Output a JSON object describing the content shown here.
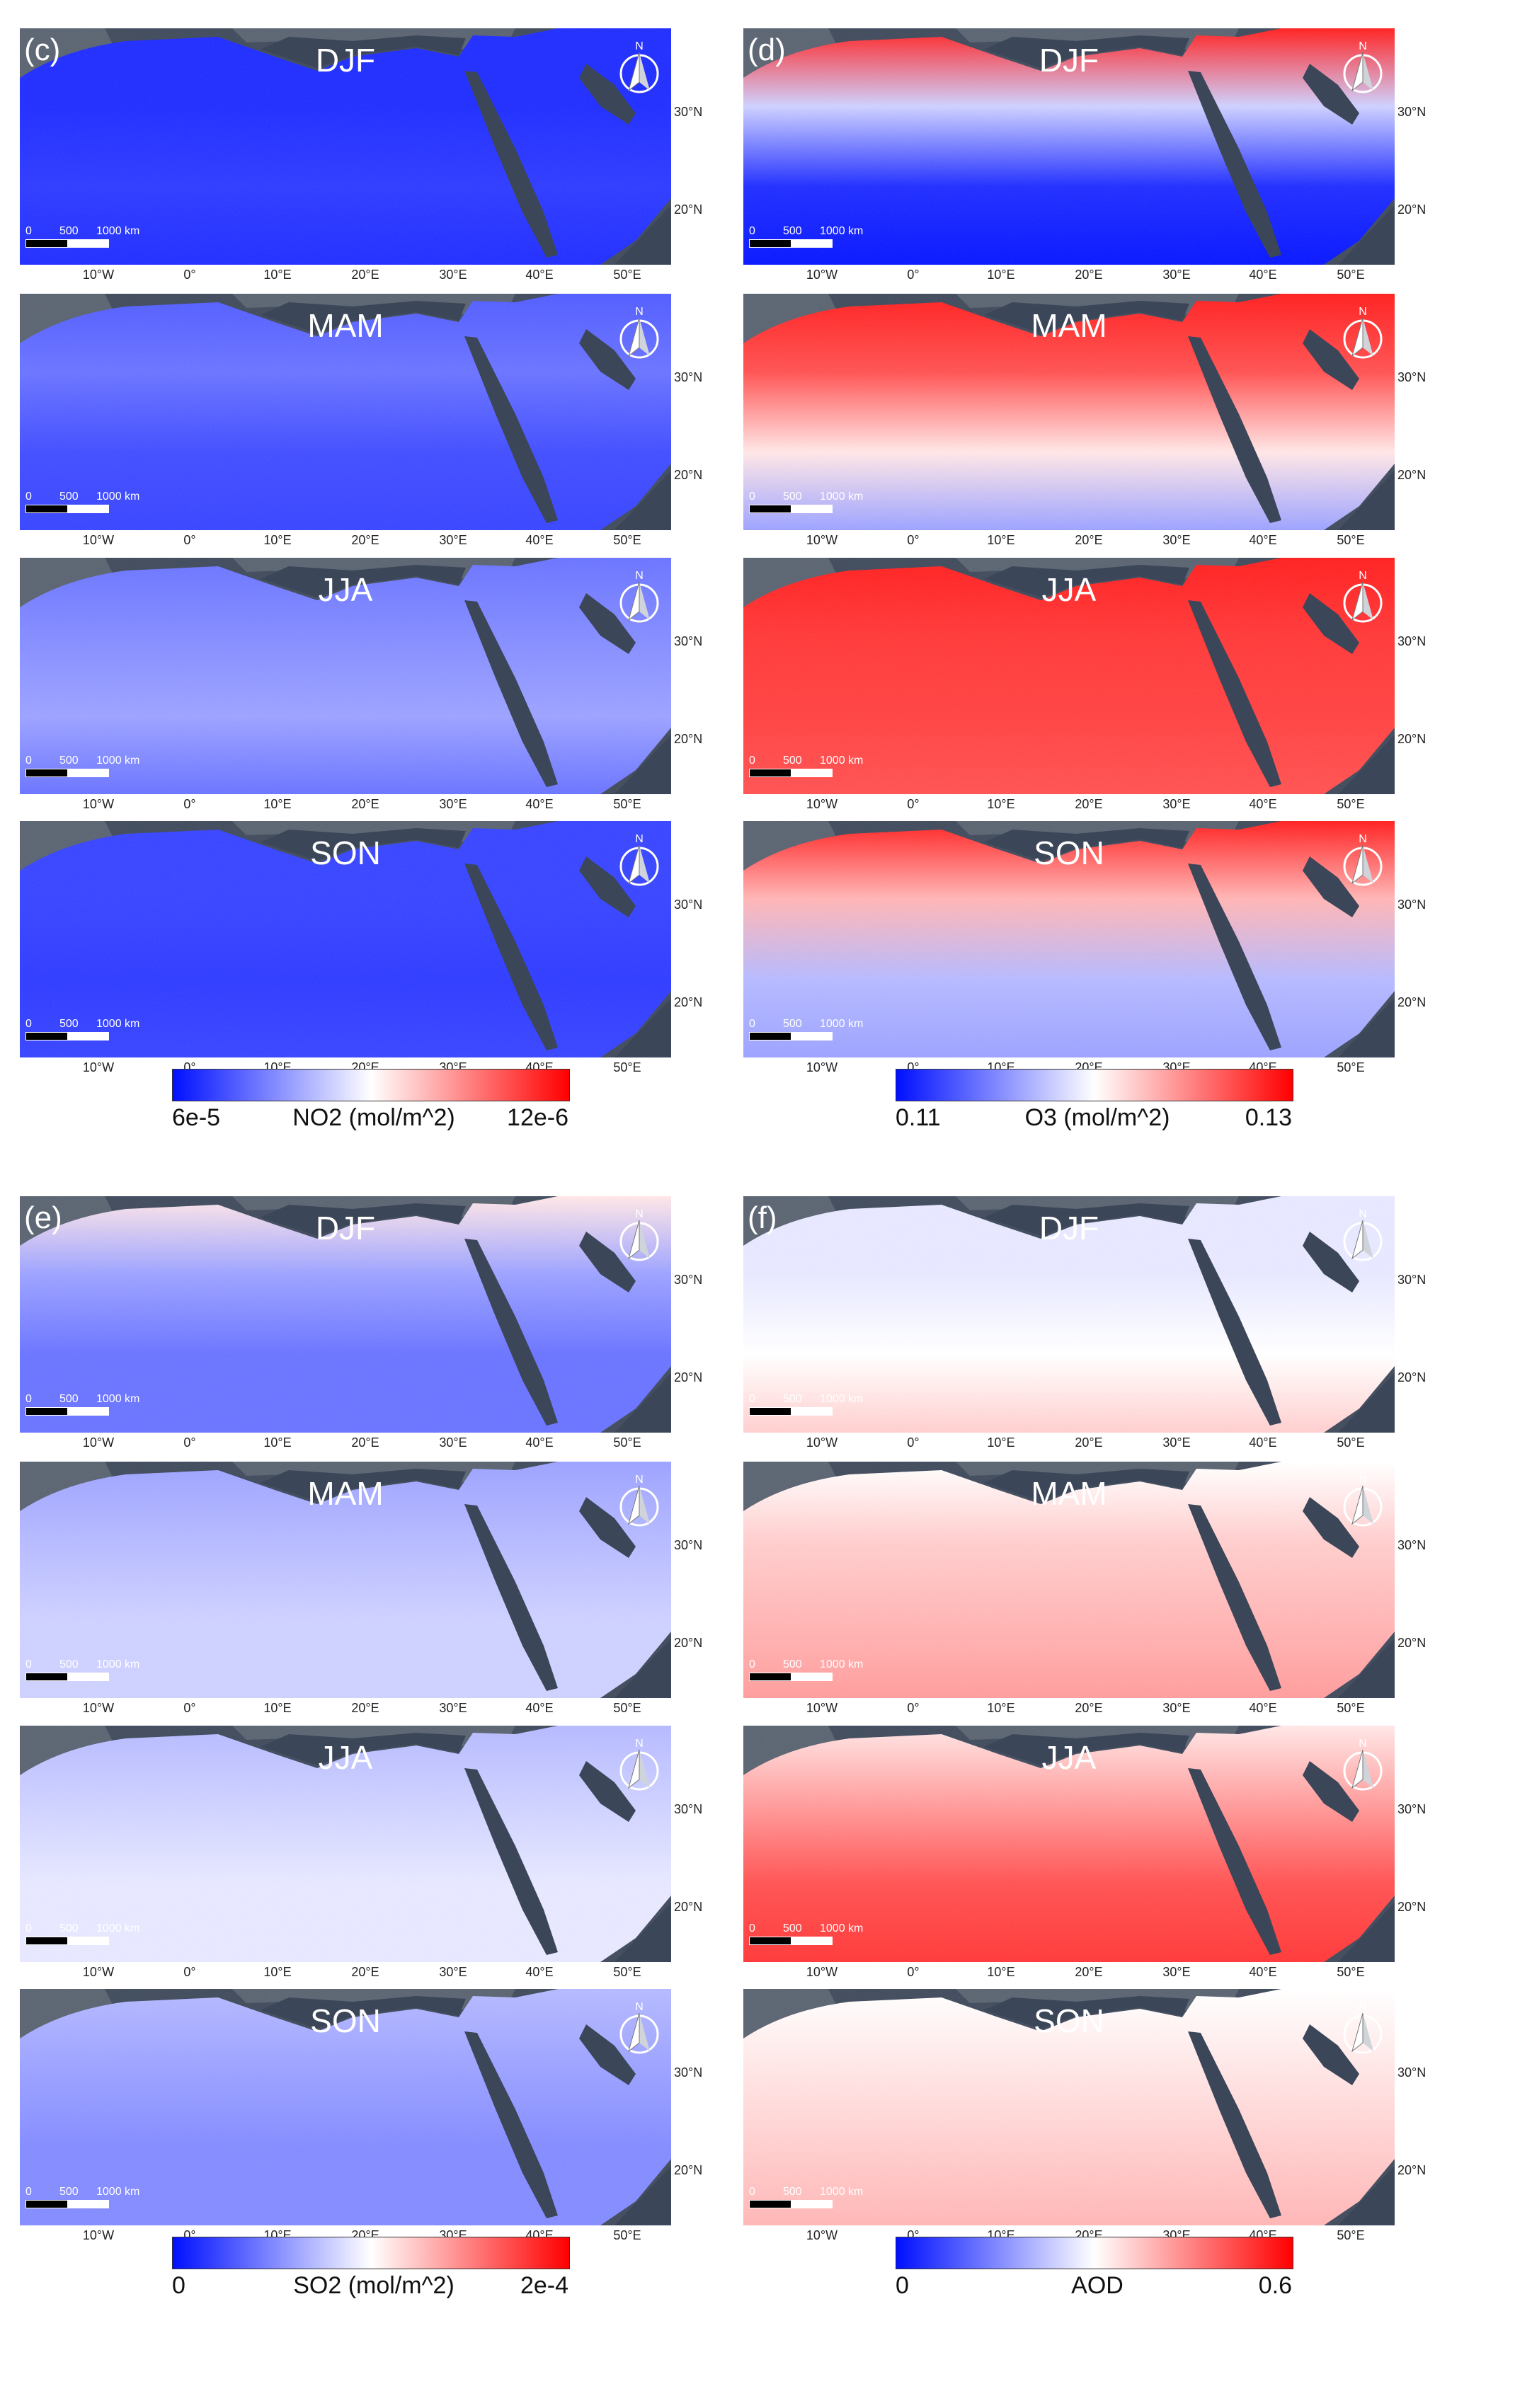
{
  "seasons": [
    "DJF",
    "MAM",
    "JJA",
    "SON"
  ],
  "lon_labels": [
    "10°W",
    "0°",
    "10°E",
    "20°E",
    "30°E",
    "40°E",
    "50°E"
  ],
  "lat_labels": [
    "30°N",
    "20°N"
  ],
  "scale": {
    "zero": "0",
    "mid": "500",
    "end": "1000 km"
  },
  "north_letter": "N",
  "colors": {
    "low": "#0010ff",
    "mid": "#ffffff",
    "high": "#ff0000",
    "sea": "#3b4658",
    "land_dark": "#565f6d"
  },
  "panels": [
    {
      "label": "(c)",
      "var": "NO2",
      "cbar": {
        "min": "6e-5",
        "title": "NO2 (mol/m^2)",
        "max": "12e-6"
      },
      "levels": [
        [
          0.05,
          0.05,
          0.08,
          0.05
        ],
        [
          0.15,
          0.2,
          0.12,
          0.1
        ],
        [
          0.2,
          0.25,
          0.3,
          0.2
        ],
        [
          0.1,
          0.1,
          0.08,
          0.1
        ]
      ]
    },
    {
      "label": "(d)",
      "var": "O3",
      "cbar": {
        "min": "0.11",
        "title": "O3 (mol/m^2)",
        "max": "0.13"
      },
      "levels": [
        [
          0.95,
          0.4,
          0.05,
          0.0
        ],
        [
          0.95,
          0.85,
          0.55,
          0.3
        ],
        [
          0.95,
          0.9,
          0.88,
          0.85
        ],
        [
          0.95,
          0.65,
          0.35,
          0.3
        ]
      ]
    },
    {
      "label": "(e)",
      "var": "SO2",
      "cbar": {
        "min": "0",
        "title": "SO2 (mol/m^2)",
        "max": "2e-4"
      },
      "levels": [
        [
          0.55,
          0.3,
          0.2,
          0.2
        ],
        [
          0.3,
          0.35,
          0.4,
          0.4
        ],
        [
          0.35,
          0.4,
          0.45,
          0.45
        ],
        [
          0.35,
          0.3,
          0.25,
          0.25
        ]
      ]
    },
    {
      "label": "(f)",
      "var": "AOD",
      "cbar": {
        "min": "0",
        "title": "AOD",
        "max": "0.6"
      },
      "levels": [
        [
          0.45,
          0.45,
          0.5,
          0.6
        ],
        [
          0.5,
          0.6,
          0.65,
          0.7
        ],
        [
          0.55,
          0.7,
          0.85,
          0.9
        ],
        [
          0.5,
          0.55,
          0.6,
          0.65
        ]
      ]
    }
  ]
}
